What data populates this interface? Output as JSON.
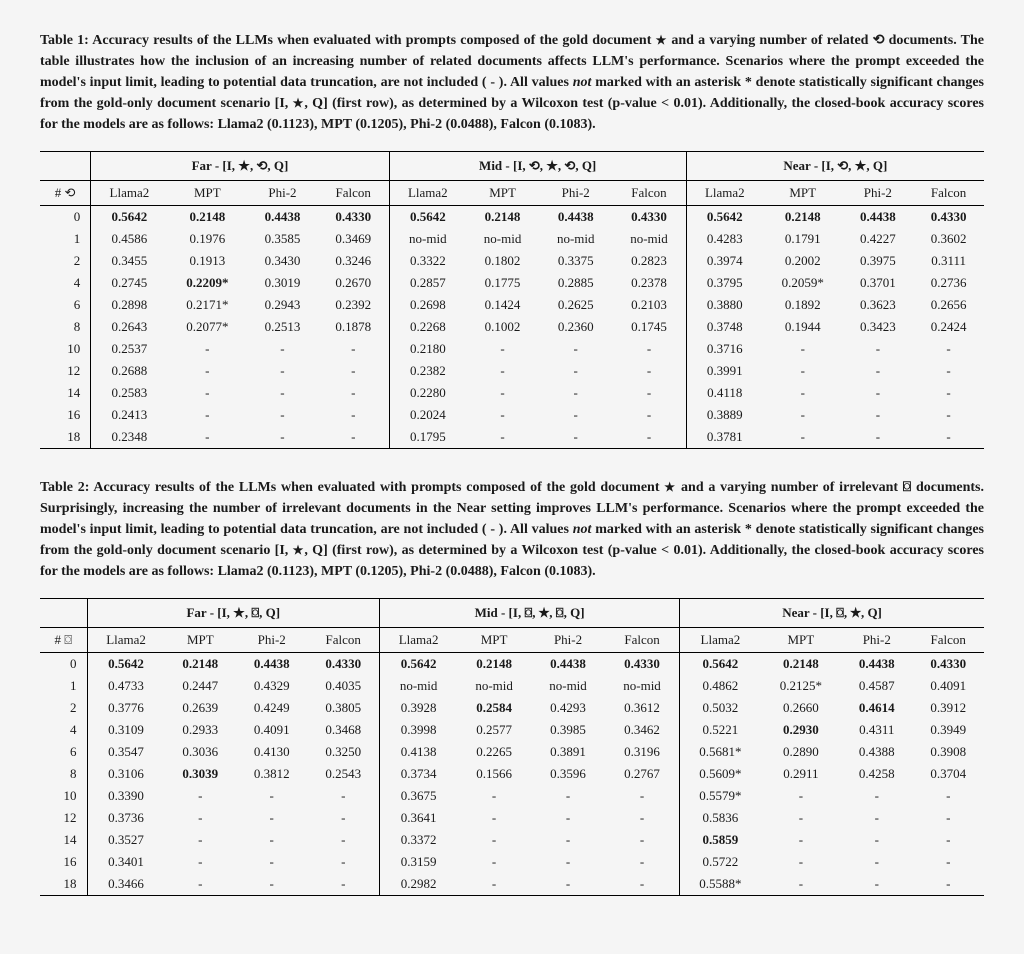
{
  "icons": {
    "star": "★",
    "related": "⟲",
    "irrelevant": "⌼"
  },
  "model_names": [
    "Llama2",
    "MPT",
    "Phi-2",
    "Falcon"
  ],
  "closed_book": {
    "Llama2": "0.1123",
    "MPT": "0.1205",
    "Phi-2": "0.0488",
    "Falcon": "0.1083"
  },
  "row_indices": [
    0,
    1,
    2,
    4,
    6,
    8,
    10,
    12,
    14,
    16,
    18
  ],
  "table1": {
    "caption_prefix": "Table 1: Accuracy results of the LLMs when evaluated with prompts composed of the gold document ",
    "caption_mid1": " and a varying number of related ",
    "caption_mid2": " documents. The table illustrates how the inclusion of an increasing number of related documents affects LLM's performance. Scenarios where the prompt exceeded the model's input limit, leading to potential data truncation, are not included ( - ). All values ",
    "caption_not": "not",
    "caption_mid3": " marked with an asterisk * denote statistically significant changes from the gold-only document scenario [I, ",
    "caption_mid4": ", Q] (first row), as determined by a Wilcoxon test (p-value < 0.01). Additionally, the closed-book accuracy scores for the models are as follows: Llama2 (0.1123), MPT (0.1205), Phi-2 (0.0488), Falcon (0.1083).",
    "count_label_prefix": "# ",
    "groups": [
      {
        "label_pre": "Far - [I, ",
        "label_post": ", Q]",
        "key": "far"
      },
      {
        "label_pre": "Mid - [I, ",
        "label_post": ", Q]",
        "key": "mid"
      },
      {
        "label_pre": "Near - [I, ",
        "label_post": ", Q]",
        "key": "near"
      }
    ],
    "group_icons": {
      "far": [
        "star",
        "related"
      ],
      "mid": [
        "related",
        "star",
        "related"
      ],
      "near": [
        "related",
        "star"
      ]
    },
    "data": {
      "far": [
        [
          {
            "v": "0.5642",
            "b": true
          },
          {
            "v": "0.2148",
            "b": true
          },
          {
            "v": "0.4438",
            "b": true
          },
          {
            "v": "0.4330",
            "b": true
          }
        ],
        [
          {
            "v": "0.4586"
          },
          {
            "v": "0.1976"
          },
          {
            "v": "0.3585"
          },
          {
            "v": "0.3469"
          }
        ],
        [
          {
            "v": "0.3455"
          },
          {
            "v": "0.1913"
          },
          {
            "v": "0.3430"
          },
          {
            "v": "0.3246"
          }
        ],
        [
          {
            "v": "0.2745"
          },
          {
            "v": "0.2209*",
            "b": true
          },
          {
            "v": "0.3019"
          },
          {
            "v": "0.2670"
          }
        ],
        [
          {
            "v": "0.2898"
          },
          {
            "v": "0.2171*"
          },
          {
            "v": "0.2943"
          },
          {
            "v": "0.2392"
          }
        ],
        [
          {
            "v": "0.2643"
          },
          {
            "v": "0.2077*"
          },
          {
            "v": "0.2513"
          },
          {
            "v": "0.1878"
          }
        ],
        [
          {
            "v": "0.2537"
          },
          {
            "v": "-"
          },
          {
            "v": "-"
          },
          {
            "v": "-"
          }
        ],
        [
          {
            "v": "0.2688"
          },
          {
            "v": "-"
          },
          {
            "v": "-"
          },
          {
            "v": "-"
          }
        ],
        [
          {
            "v": "0.2583"
          },
          {
            "v": "-"
          },
          {
            "v": "-"
          },
          {
            "v": "-"
          }
        ],
        [
          {
            "v": "0.2413"
          },
          {
            "v": "-"
          },
          {
            "v": "-"
          },
          {
            "v": "-"
          }
        ],
        [
          {
            "v": "0.2348"
          },
          {
            "v": "-"
          },
          {
            "v": "-"
          },
          {
            "v": "-"
          }
        ]
      ],
      "mid": [
        [
          {
            "v": "0.5642",
            "b": true
          },
          {
            "v": "0.2148",
            "b": true
          },
          {
            "v": "0.4438",
            "b": true
          },
          {
            "v": "0.4330",
            "b": true
          }
        ],
        [
          {
            "v": "no-mid"
          },
          {
            "v": "no-mid"
          },
          {
            "v": "no-mid"
          },
          {
            "v": "no-mid"
          }
        ],
        [
          {
            "v": "0.3322"
          },
          {
            "v": "0.1802"
          },
          {
            "v": "0.3375"
          },
          {
            "v": "0.2823"
          }
        ],
        [
          {
            "v": "0.2857"
          },
          {
            "v": "0.1775"
          },
          {
            "v": "0.2885"
          },
          {
            "v": "0.2378"
          }
        ],
        [
          {
            "v": "0.2698"
          },
          {
            "v": "0.1424"
          },
          {
            "v": "0.2625"
          },
          {
            "v": "0.2103"
          }
        ],
        [
          {
            "v": "0.2268"
          },
          {
            "v": "0.1002"
          },
          {
            "v": "0.2360"
          },
          {
            "v": "0.1745"
          }
        ],
        [
          {
            "v": "0.2180"
          },
          {
            "v": "-"
          },
          {
            "v": "-"
          },
          {
            "v": "-"
          }
        ],
        [
          {
            "v": "0.2382"
          },
          {
            "v": "-"
          },
          {
            "v": "-"
          },
          {
            "v": "-"
          }
        ],
        [
          {
            "v": "0.2280"
          },
          {
            "v": "-"
          },
          {
            "v": "-"
          },
          {
            "v": "-"
          }
        ],
        [
          {
            "v": "0.2024"
          },
          {
            "v": "-"
          },
          {
            "v": "-"
          },
          {
            "v": "-"
          }
        ],
        [
          {
            "v": "0.1795"
          },
          {
            "v": "-"
          },
          {
            "v": "-"
          },
          {
            "v": "-"
          }
        ]
      ],
      "near": [
        [
          {
            "v": "0.5642",
            "b": true
          },
          {
            "v": "0.2148",
            "b": true
          },
          {
            "v": "0.4438",
            "b": true
          },
          {
            "v": "0.4330",
            "b": true
          }
        ],
        [
          {
            "v": "0.4283"
          },
          {
            "v": "0.1791"
          },
          {
            "v": "0.4227"
          },
          {
            "v": "0.3602"
          }
        ],
        [
          {
            "v": "0.3974"
          },
          {
            "v": "0.2002"
          },
          {
            "v": "0.3975"
          },
          {
            "v": "0.3111"
          }
        ],
        [
          {
            "v": "0.3795"
          },
          {
            "v": "0.2059*"
          },
          {
            "v": "0.3701"
          },
          {
            "v": "0.2736"
          }
        ],
        [
          {
            "v": "0.3880"
          },
          {
            "v": "0.1892"
          },
          {
            "v": "0.3623"
          },
          {
            "v": "0.2656"
          }
        ],
        [
          {
            "v": "0.3748"
          },
          {
            "v": "0.1944"
          },
          {
            "v": "0.3423"
          },
          {
            "v": "0.2424"
          }
        ],
        [
          {
            "v": "0.3716"
          },
          {
            "v": "-"
          },
          {
            "v": "-"
          },
          {
            "v": "-"
          }
        ],
        [
          {
            "v": "0.3991"
          },
          {
            "v": "-"
          },
          {
            "v": "-"
          },
          {
            "v": "-"
          }
        ],
        [
          {
            "v": "0.4118"
          },
          {
            "v": "-"
          },
          {
            "v": "-"
          },
          {
            "v": "-"
          }
        ],
        [
          {
            "v": "0.3889"
          },
          {
            "v": "-"
          },
          {
            "v": "-"
          },
          {
            "v": "-"
          }
        ],
        [
          {
            "v": "0.3781"
          },
          {
            "v": "-"
          },
          {
            "v": "-"
          },
          {
            "v": "-"
          }
        ]
      ]
    }
  },
  "table2": {
    "caption_prefix": "Table 2: Accuracy results of the LLMs when evaluated with prompts composed of the gold document ",
    "caption_mid1": " and a varying number of irrelevant ",
    "caption_mid2": " documents. Surprisingly, increasing the number of irrelevant documents in the Near setting improves LLM's performance. Scenarios where the prompt exceeded the model's input limit, leading to potential data truncation, are not included ( - ). All values ",
    "caption_not": "not",
    "caption_mid3": " marked with an asterisk * denote statistically significant changes from the gold-only document scenario [I, ",
    "caption_mid4": ", Q] (first row), as determined by a Wilcoxon test (p-value < 0.01). Additionally, the closed-book accuracy scores for the models are as follows: Llama2 (0.1123), MPT (0.1205), Phi-2 (0.0488), Falcon (0.1083).",
    "count_label_prefix": "# ",
    "groups": [
      {
        "label_pre": "Far - [I, ",
        "label_post": ", Q]",
        "key": "far"
      },
      {
        "label_pre": "Mid - [I, ",
        "label_post": ", Q]",
        "key": "mid"
      },
      {
        "label_pre": "Near - [I, ",
        "label_post": ", Q]",
        "key": "near"
      }
    ],
    "group_icons": {
      "far": [
        "star",
        "irrelevant"
      ],
      "mid": [
        "irrelevant",
        "star",
        "irrelevant"
      ],
      "near": [
        "irrelevant",
        "star"
      ]
    },
    "data": {
      "far": [
        [
          {
            "v": "0.5642",
            "b": true
          },
          {
            "v": "0.2148",
            "b": true
          },
          {
            "v": "0.4438",
            "b": true
          },
          {
            "v": "0.4330",
            "b": true
          }
        ],
        [
          {
            "v": "0.4733"
          },
          {
            "v": "0.2447"
          },
          {
            "v": "0.4329"
          },
          {
            "v": "0.4035"
          }
        ],
        [
          {
            "v": "0.3776"
          },
          {
            "v": "0.2639"
          },
          {
            "v": "0.4249"
          },
          {
            "v": "0.3805"
          }
        ],
        [
          {
            "v": "0.3109"
          },
          {
            "v": "0.2933"
          },
          {
            "v": "0.4091"
          },
          {
            "v": "0.3468"
          }
        ],
        [
          {
            "v": "0.3547"
          },
          {
            "v": "0.3036"
          },
          {
            "v": "0.4130"
          },
          {
            "v": "0.3250"
          }
        ],
        [
          {
            "v": "0.3106"
          },
          {
            "v": "0.3039",
            "b": true
          },
          {
            "v": "0.3812"
          },
          {
            "v": "0.2543"
          }
        ],
        [
          {
            "v": "0.3390"
          },
          {
            "v": "-"
          },
          {
            "v": "-"
          },
          {
            "v": "-"
          }
        ],
        [
          {
            "v": "0.3736"
          },
          {
            "v": "-"
          },
          {
            "v": "-"
          },
          {
            "v": "-"
          }
        ],
        [
          {
            "v": "0.3527"
          },
          {
            "v": "-"
          },
          {
            "v": "-"
          },
          {
            "v": "-"
          }
        ],
        [
          {
            "v": "0.3401"
          },
          {
            "v": "-"
          },
          {
            "v": "-"
          },
          {
            "v": "-"
          }
        ],
        [
          {
            "v": "0.3466"
          },
          {
            "v": "-"
          },
          {
            "v": "-"
          },
          {
            "v": "-"
          }
        ]
      ],
      "mid": [
        [
          {
            "v": "0.5642",
            "b": true
          },
          {
            "v": "0.2148",
            "b": true
          },
          {
            "v": "0.4438",
            "b": true
          },
          {
            "v": "0.4330",
            "b": true
          }
        ],
        [
          {
            "v": "no-mid"
          },
          {
            "v": "no-mid"
          },
          {
            "v": "no-mid"
          },
          {
            "v": "no-mid"
          }
        ],
        [
          {
            "v": "0.3928"
          },
          {
            "v": "0.2584",
            "b": true
          },
          {
            "v": "0.4293"
          },
          {
            "v": "0.3612"
          }
        ],
        [
          {
            "v": "0.3998"
          },
          {
            "v": "0.2577"
          },
          {
            "v": "0.3985"
          },
          {
            "v": "0.3462"
          }
        ],
        [
          {
            "v": "0.4138"
          },
          {
            "v": "0.2265"
          },
          {
            "v": "0.3891"
          },
          {
            "v": "0.3196"
          }
        ],
        [
          {
            "v": "0.3734"
          },
          {
            "v": "0.1566"
          },
          {
            "v": "0.3596"
          },
          {
            "v": "0.2767"
          }
        ],
        [
          {
            "v": "0.3675"
          },
          {
            "v": "-"
          },
          {
            "v": "-"
          },
          {
            "v": "-"
          }
        ],
        [
          {
            "v": "0.3641"
          },
          {
            "v": "-"
          },
          {
            "v": "-"
          },
          {
            "v": "-"
          }
        ],
        [
          {
            "v": "0.3372"
          },
          {
            "v": "-"
          },
          {
            "v": "-"
          },
          {
            "v": "-"
          }
        ],
        [
          {
            "v": "0.3159"
          },
          {
            "v": "-"
          },
          {
            "v": "-"
          },
          {
            "v": "-"
          }
        ],
        [
          {
            "v": "0.2982"
          },
          {
            "v": "-"
          },
          {
            "v": "-"
          },
          {
            "v": "-"
          }
        ]
      ],
      "near": [
        [
          {
            "v": "0.5642",
            "b": true
          },
          {
            "v": "0.2148",
            "b": true
          },
          {
            "v": "0.4438",
            "b": true
          },
          {
            "v": "0.4330",
            "b": true
          }
        ],
        [
          {
            "v": "0.4862"
          },
          {
            "v": "0.2125*"
          },
          {
            "v": "0.4587"
          },
          {
            "v": "0.4091"
          }
        ],
        [
          {
            "v": "0.5032"
          },
          {
            "v": "0.2660"
          },
          {
            "v": "0.4614",
            "b": true
          },
          {
            "v": "0.3912"
          }
        ],
        [
          {
            "v": "0.5221"
          },
          {
            "v": "0.2930",
            "b": true
          },
          {
            "v": "0.4311"
          },
          {
            "v": "0.3949"
          }
        ],
        [
          {
            "v": "0.5681*"
          },
          {
            "v": "0.2890"
          },
          {
            "v": "0.4388"
          },
          {
            "v": "0.3908"
          }
        ],
        [
          {
            "v": "0.5609*"
          },
          {
            "v": "0.2911"
          },
          {
            "v": "0.4258"
          },
          {
            "v": "0.3704"
          }
        ],
        [
          {
            "v": "0.5579*"
          },
          {
            "v": "-"
          },
          {
            "v": "-"
          },
          {
            "v": "-"
          }
        ],
        [
          {
            "v": "0.5836"
          },
          {
            "v": "-"
          },
          {
            "v": "-"
          },
          {
            "v": "-"
          }
        ],
        [
          {
            "v": "0.5859",
            "b": true
          },
          {
            "v": "-"
          },
          {
            "v": "-"
          },
          {
            "v": "-"
          }
        ],
        [
          {
            "v": "0.5722"
          },
          {
            "v": "-"
          },
          {
            "v": "-"
          },
          {
            "v": "-"
          }
        ],
        [
          {
            "v": "0.5588*"
          },
          {
            "v": "-"
          },
          {
            "v": "-"
          },
          {
            "v": "-"
          }
        ]
      ]
    }
  }
}
